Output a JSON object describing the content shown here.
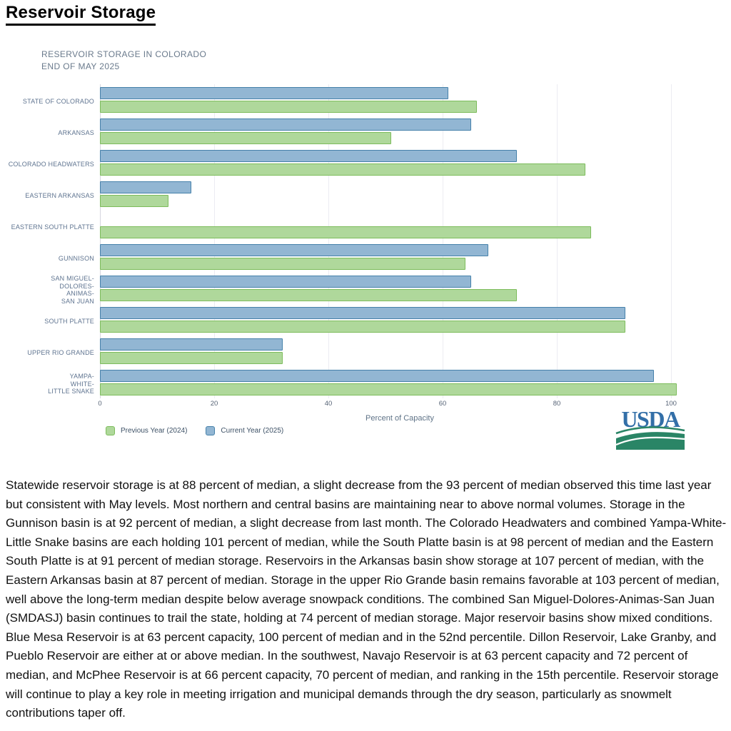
{
  "page": {
    "title": "Reservoir Storage"
  },
  "chart": {
    "title_lines": [
      "RESERVOIR STORAGE IN COLORADO",
      "END OF MAY 2025"
    ],
    "xlabel": "Percent of Capacity",
    "legend": [
      {
        "label": "Previous Year (2024)",
        "fill": "#afd89b",
        "border": "#7dbc5c"
      },
      {
        "label": "Current Year (2025)",
        "fill": "#92b6d3",
        "border": "#4681aa"
      }
    ]
  },
  "chart_data": {
    "type": "bar",
    "orientation": "horizontal",
    "title": "RESERVOIR STORAGE IN COLORADO END OF MAY 2025",
    "xlabel": "Percent of Capacity",
    "xlim": [
      0,
      100
    ],
    "xticks": [
      0,
      20,
      40,
      60,
      80,
      100
    ],
    "grid": true,
    "legend_position": "bottom-left",
    "categories": [
      "STATE OF COLORADO",
      "ARKANSAS",
      "COLORADO HEADWATERS",
      "EASTERN ARKANSAS",
      "EASTERN SOUTH PLATTE",
      "GUNNISON",
      "SAN MIGUEL-DOLORES-ANIMAS-SAN JUAN",
      "SOUTH PLATTE",
      "UPPER RIO GRANDE",
      "YAMPA-WHITE-LITTLE SNAKE"
    ],
    "category_label_lines": [
      [
        "STATE OF COLORADO"
      ],
      [
        "ARKANSAS"
      ],
      [
        "COLORADO HEADWATERS"
      ],
      [
        "EASTERN ARKANSAS"
      ],
      [
        "EASTERN SOUTH PLATTE"
      ],
      [
        "GUNNISON"
      ],
      [
        "SAN MIGUEL-",
        "DOLORES-",
        "ANIMAS-",
        "SAN JUAN"
      ],
      [
        "SOUTH PLATTE"
      ],
      [
        "UPPER RIO GRANDE"
      ],
      [
        "YAMPA-",
        "WHITE-",
        "LITTLE SNAKE"
      ]
    ],
    "series": [
      {
        "name": "Current Year (2025)",
        "fill": "#92b6d3",
        "border": "#4681aa",
        "values": [
          61,
          65,
          73,
          16,
          null,
          68,
          65,
          92,
          32,
          97
        ]
      },
      {
        "name": "Previous Year (2024)",
        "fill": "#afd89b",
        "border": "#7dbc5c",
        "values": [
          66,
          51,
          85,
          12,
          86,
          64,
          73,
          92,
          32,
          101
        ]
      }
    ]
  },
  "logo": {
    "text": "USDA"
  },
  "body": {
    "paragraph": "Statewide reservoir storage is at 88 percent of median, a slight decrease from the 93 percent of median observed this time last year but consistent with May levels. Most northern and central basins are maintaining near to above normal volumes. Storage in the Gunnison basin is at 92 percent of median, a slight decrease from last month. The Colorado Headwaters and combined Yampa-White-Little Snake basins are each holding 101 percent of median, while the South Platte basin is at 98 percent of median and the Eastern South Platte is at 91 percent of median storage. Reservoirs in the Arkansas basin show storage at 107 percent of median, with the Eastern Arkansas basin at 87 percent of median. Storage in the upper Rio Grande basin remains favorable at 103 percent of median, well above the long-term median despite below average snowpack conditions. The combined San Miguel-Dolores-Animas-San Juan (SMDASJ) basin continues to trail the state, holding at 74 percent of median storage. Major reservoir basins show mixed conditions. Blue Mesa Reservoir is at 63 percent capacity, 100 percent of median and in the 52nd percentile. Dillon Reservoir, Lake Granby, and Pueblo Reservoir are either at or above median. In the southwest, Navajo Reservoir is at 63 percent capacity and 72 percent of median, and McPhee Reservoir is at 66 percent capacity, 70 percent of median, and ranking in the 15th percentile. Reservoir storage will continue to play a key role in meeting irrigation and municipal demands through the dry season, particularly as snowmelt contributions taper off."
  }
}
